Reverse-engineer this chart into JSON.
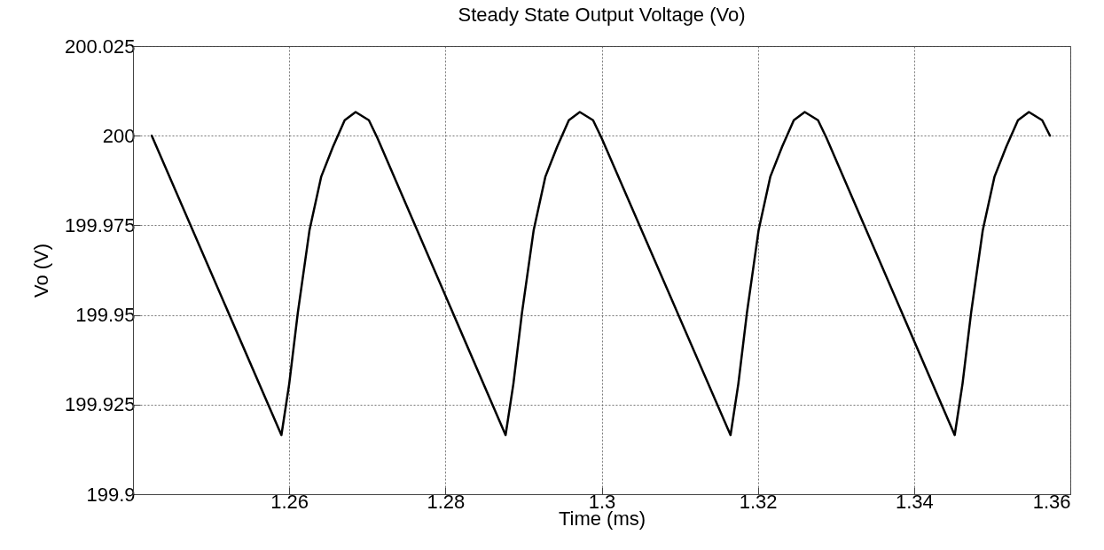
{
  "chart_data": {
    "type": "line",
    "title": "Steady State Output Voltage (Vo)",
    "xlabel": "Time (ms)",
    "ylabel": "Vo (V)",
    "xlim": [
      1.24,
      1.36
    ],
    "xticks": [
      1.26,
      1.28,
      1.3,
      1.32,
      1.34,
      1.36
    ],
    "ylim": [
      199.9,
      200.025
    ],
    "yticks": [
      199.9,
      199.925,
      199.95,
      199.975,
      200,
      200.025
    ],
    "grid": true,
    "marker": "none",
    "line_style": "solid",
    "series": [
      {
        "color": "#000000",
        "x": [
          1.2424,
          1.259,
          1.26,
          1.2611,
          1.2626,
          1.2641,
          1.2656,
          1.2671,
          1.2685,
          1.2702,
          1.2713,
          1.2877,
          1.2887,
          1.2898,
          1.2913,
          1.2928,
          1.2943,
          1.2958,
          1.2972,
          1.2989,
          1.3,
          1.3165,
          1.3175,
          1.3186,
          1.3201,
          1.3216,
          1.3231,
          1.3246,
          1.326,
          1.3277,
          1.3288,
          1.3452,
          1.3462,
          1.3473,
          1.3488,
          1.3503,
          1.3518,
          1.3533,
          1.3547,
          1.3564,
          1.3574
        ],
        "values": [
          200.0,
          199.9165,
          199.9308,
          199.9506,
          199.9737,
          199.9886,
          199.9969,
          200.0043,
          200.0066,
          200.0043,
          199.9993,
          199.9165,
          199.9308,
          199.9506,
          199.9737,
          199.9886,
          199.9969,
          200.0043,
          200.0066,
          200.0043,
          199.9993,
          199.9165,
          199.9308,
          199.9506,
          199.9737,
          199.9886,
          199.9969,
          200.0043,
          200.0066,
          200.0043,
          199.9993,
          199.9165,
          199.9308,
          199.9506,
          199.9737,
          199.9886,
          199.9969,
          200.0043,
          200.0066,
          200.0043,
          200.0
        ]
      }
    ]
  }
}
